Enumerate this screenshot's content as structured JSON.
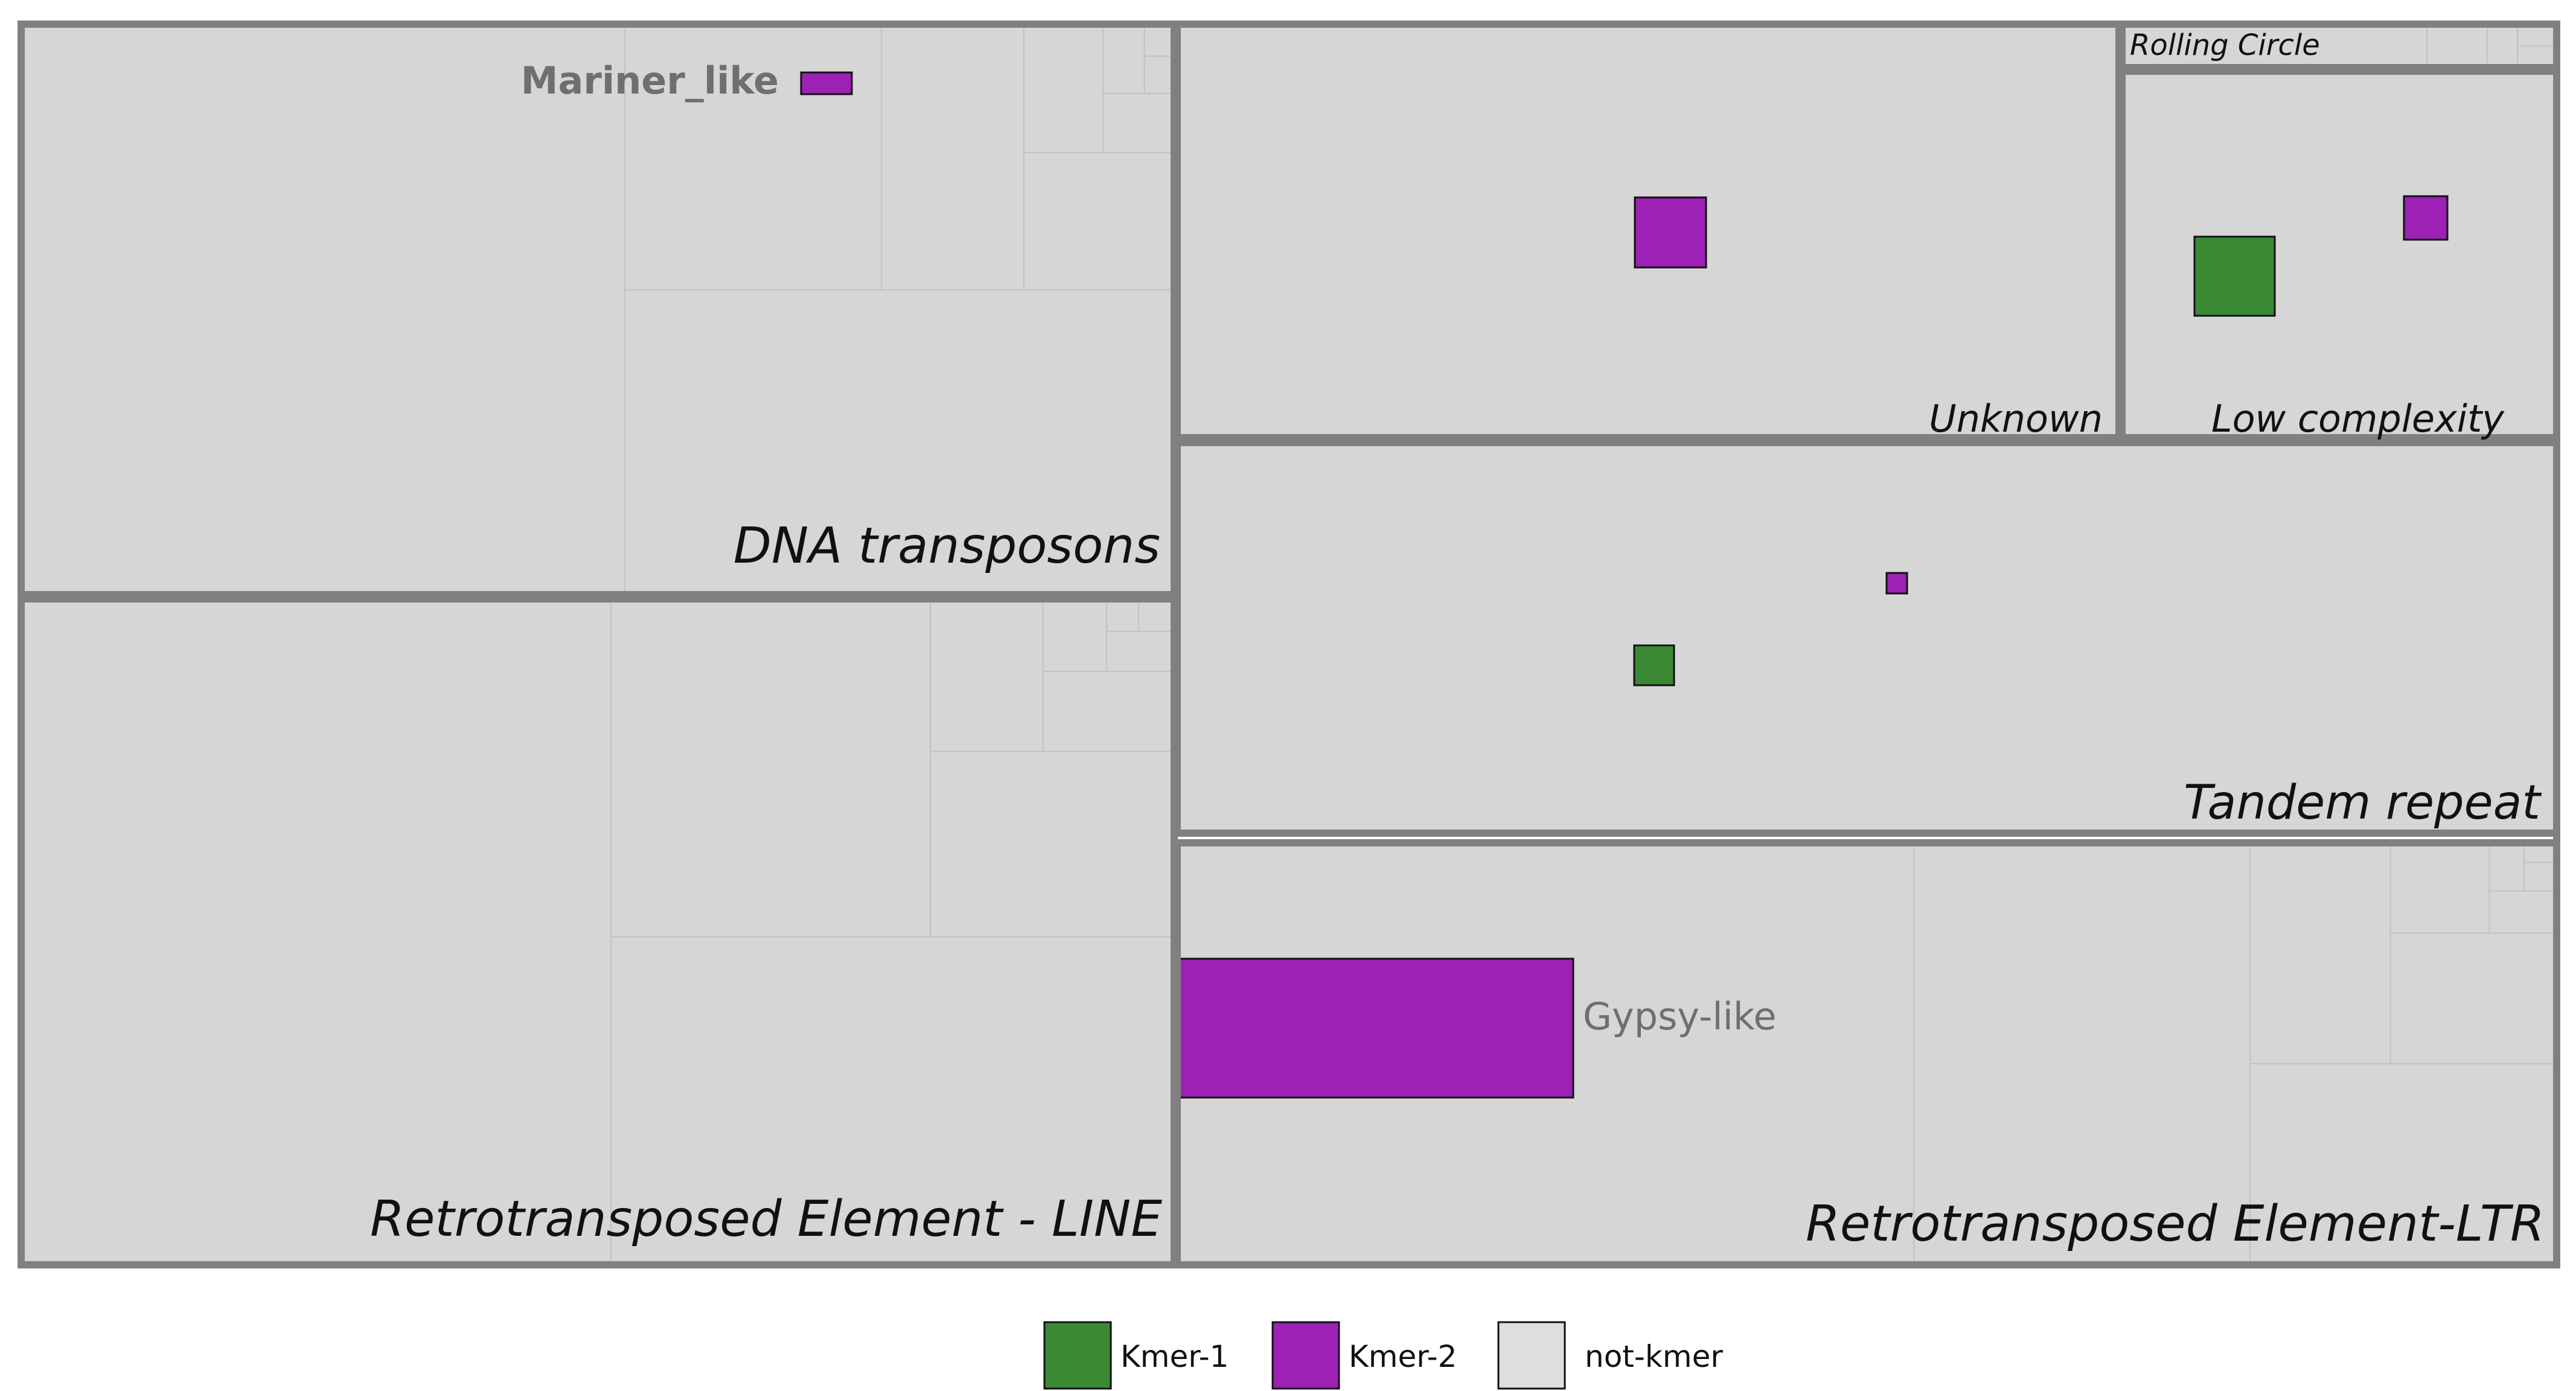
{
  "chart_data": {
    "type": "treemap",
    "title": "",
    "groups": [
      {
        "name": "DNA transposons"
      },
      {
        "name": "Retrotransposed Element - LINE"
      },
      {
        "name": "Unknown"
      },
      {
        "name": "Rolling Circle"
      },
      {
        "name": "Low complexity"
      },
      {
        "name": "Tandem repeat"
      },
      {
        "name": "Retrotransposed Element-LTR"
      }
    ],
    "annotations": [
      {
        "group": "DNA transposons",
        "text": "Mariner_like",
        "category": "Kmer-2"
      },
      {
        "group": "Retrotransposed Element-LTR",
        "text": "Gypsy-like",
        "category": "Kmer-2"
      }
    ],
    "highlights": [
      {
        "group": "Unknown",
        "category": "Kmer-2"
      },
      {
        "group": "Low complexity",
        "category": "Kmer-1"
      },
      {
        "group": "Low complexity",
        "category": "Kmer-2"
      },
      {
        "group": "Tandem repeat",
        "category": "Kmer-2"
      },
      {
        "group": "Tandem repeat",
        "category": "Kmer-1"
      }
    ],
    "legend": {
      "placement": "bottom",
      "items": [
        {
          "label": "Kmer-1",
          "color": "#3a8a35"
        },
        {
          "label": "Kmer-2",
          "color": "#9c21b4"
        },
        {
          "label": "not-kmer",
          "color": "#dedede"
        }
      ]
    },
    "colors": {
      "tile": "#d6d6d6",
      "tile_border": "#c2c2c2",
      "group_border": "#808080"
    }
  }
}
